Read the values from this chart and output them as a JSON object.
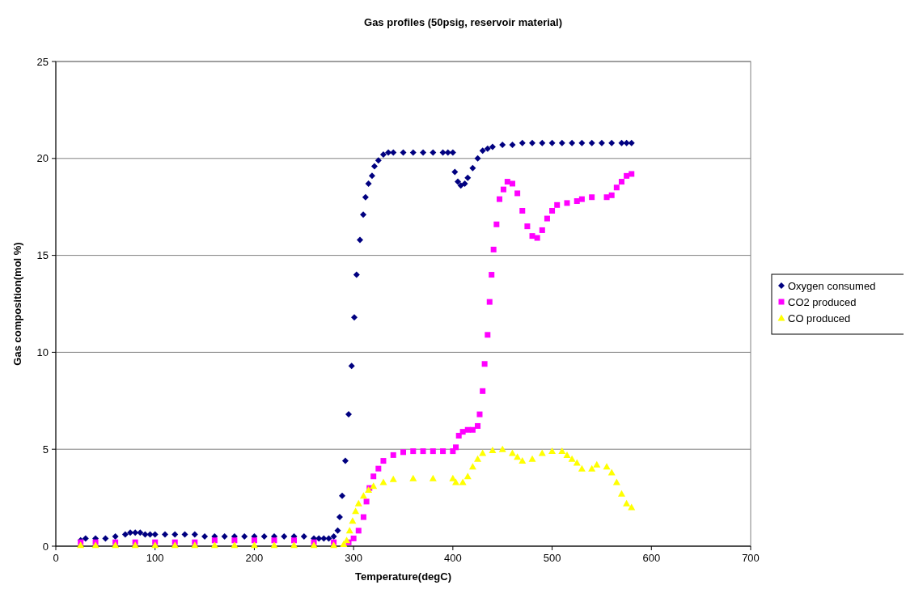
{
  "chart_data": {
    "type": "scatter",
    "title": "Gas profiles (50psig, reservoir material)",
    "xlabel": "Temperature(degC)",
    "ylabel": "Gas composition(mol %)",
    "xlim": [
      0,
      700
    ],
    "xticks": [
      0,
      100,
      200,
      300,
      400,
      500,
      600,
      700
    ],
    "ylim": [
      0,
      25
    ],
    "yticks": [
      0,
      5,
      10,
      15,
      20,
      25
    ],
    "grid": "y",
    "legend": "right",
    "series": [
      {
        "name": "Oxygen consumed",
        "color": "#000080",
        "marker": "diamond",
        "x": [
          25,
          30,
          40,
          50,
          60,
          70,
          75,
          80,
          85,
          90,
          95,
          100,
          110,
          120,
          130,
          140,
          150,
          160,
          170,
          180,
          190,
          200,
          210,
          220,
          230,
          240,
          250,
          260,
          265,
          270,
          275,
          280,
          284,
          286,
          288.5,
          291.7,
          295,
          298,
          300.7,
          303,
          306.4,
          309.7,
          312,
          315,
          318.6,
          321,
          325,
          330,
          335,
          340,
          350,
          360,
          370,
          380,
          390,
          395,
          400,
          402,
          405,
          408,
          412,
          415,
          420,
          425,
          430,
          435,
          440,
          450,
          460,
          470,
          480,
          490,
          500,
          510,
          520,
          530,
          540,
          550,
          560,
          570,
          575,
          580
        ],
        "values": [
          0.3,
          0.4,
          0.4,
          0.4,
          0.5,
          0.6,
          0.7,
          0.7,
          0.7,
          0.6,
          0.6,
          0.6,
          0.6,
          0.6,
          0.6,
          0.6,
          0.5,
          0.5,
          0.5,
          0.5,
          0.5,
          0.5,
          0.5,
          0.5,
          0.5,
          0.5,
          0.5,
          0.4,
          0.4,
          0.4,
          0.4,
          0.5,
          0.8,
          1.5,
          2.6,
          4.4,
          6.8,
          9.3,
          11.8,
          14.0,
          15.8,
          17.1,
          18.0,
          18.7,
          19.1,
          19.6,
          19.9,
          20.2,
          20.3,
          20.3,
          20.3,
          20.3,
          20.3,
          20.3,
          20.3,
          20.3,
          20.3,
          19.3,
          18.8,
          18.6,
          18.7,
          19.0,
          19.5,
          20.0,
          20.4,
          20.5,
          20.6,
          20.7,
          20.7,
          20.8,
          20.8,
          20.8,
          20.8,
          20.8,
          20.8,
          20.8,
          20.8,
          20.8,
          20.8,
          20.8,
          20.8,
          20.8
        ]
      },
      {
        "name": "CO2 produced",
        "color": "#ff00ff",
        "marker": "square",
        "x": [
          25,
          40,
          60,
          80,
          100,
          120,
          140,
          160,
          180,
          200,
          220,
          240,
          260,
          280,
          295,
          300,
          305,
          310,
          313,
          316,
          320,
          325,
          330,
          340,
          350,
          360,
          370,
          380,
          390,
          400,
          403,
          406,
          410,
          415,
          420,
          425,
          427,
          430,
          432,
          435,
          437,
          439,
          441,
          444,
          447,
          451,
          455,
          460,
          465,
          470,
          475,
          480,
          485,
          490,
          495,
          500,
          505,
          515,
          525,
          530,
          540,
          555,
          560,
          565,
          570,
          575,
          580
        ],
        "values": [
          0.2,
          0.2,
          0.2,
          0.2,
          0.2,
          0.2,
          0.2,
          0.3,
          0.3,
          0.3,
          0.3,
          0.3,
          0.2,
          0.2,
          0.2,
          0.4,
          0.8,
          1.5,
          2.3,
          3.0,
          3.6,
          4.0,
          4.4,
          4.7,
          4.85,
          4.9,
          4.9,
          4.9,
          4.9,
          4.9,
          5.1,
          5.7,
          5.9,
          6.0,
          6.0,
          6.2,
          6.8,
          8.0,
          9.4,
          10.9,
          12.6,
          14.0,
          15.3,
          16.6,
          17.9,
          18.4,
          18.8,
          18.7,
          18.2,
          17.3,
          16.5,
          16.0,
          15.9,
          16.3,
          16.9,
          17.3,
          17.6,
          17.7,
          17.8,
          17.9,
          18.0,
          18.0,
          18.1,
          18.5,
          18.8,
          19.1,
          19.2
        ]
      },
      {
        "name": "CO produced",
        "color": "#ffff00",
        "marker": "triangle",
        "x": [
          25,
          40,
          60,
          80,
          100,
          120,
          140,
          160,
          180,
          200,
          220,
          240,
          260,
          280,
          290,
          293,
          296,
          299,
          302,
          305,
          310,
          315,
          320,
          330,
          340,
          360,
          380,
          400,
          403,
          410,
          415,
          420,
          425,
          430,
          440,
          450,
          460,
          465,
          470,
          480,
          490,
          500,
          510,
          515,
          520,
          525,
          530,
          540,
          545,
          555,
          560,
          565,
          570,
          575,
          580
        ],
        "values": [
          0.05,
          0.05,
          0.05,
          0.05,
          0.05,
          0.05,
          0.05,
          0.05,
          0.05,
          0.05,
          0.05,
          0.05,
          0.05,
          0.05,
          0.1,
          0.3,
          0.8,
          1.3,
          1.8,
          2.2,
          2.6,
          2.9,
          3.1,
          3.3,
          3.45,
          3.5,
          3.5,
          3.5,
          3.3,
          3.3,
          3.6,
          4.1,
          4.5,
          4.8,
          4.95,
          5.0,
          4.8,
          4.6,
          4.4,
          4.5,
          4.8,
          4.9,
          4.9,
          4.7,
          4.5,
          4.3,
          4.0,
          4.0,
          4.2,
          4.1,
          3.8,
          3.3,
          2.7,
          2.2,
          2.0
        ]
      }
    ]
  }
}
